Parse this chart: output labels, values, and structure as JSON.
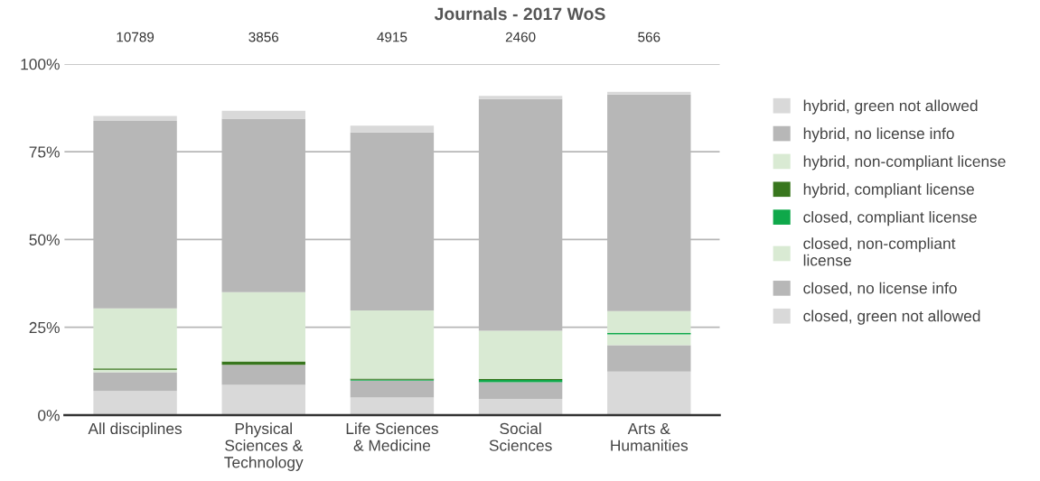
{
  "chart_data": {
    "type": "bar",
    "title": "Journals - 2017 WoS",
    "stacked": true,
    "categories": [
      "All disciplines",
      "Physical\nSciences &\nTechnology",
      "Life Sciences\n& Medicine",
      "Social\nSciences",
      "Arts &\nHumanities"
    ],
    "series": [
      {
        "name": "closed, green not allowed",
        "color": "#d9d9d9",
        "values": [
          6.9,
          8.6,
          5.0,
          4.6,
          12.4
        ]
      },
      {
        "name": "closed, no license info",
        "color": "#b7b7b7",
        "values": [
          5.3,
          5.7,
          4.8,
          4.8,
          7.5
        ]
      },
      {
        "name": "closed, non-compliant\nlicense",
        "color": "#d9ead3",
        "values": [
          0.7,
          null,
          null,
          null,
          3.1
        ]
      },
      {
        "name": "closed, compliant license",
        "color": "#0fa84a",
        "values": [
          0,
          0,
          0.3,
          0.6,
          0.4
        ]
      },
      {
        "name": "hybrid, compliant license",
        "color": "#38761d",
        "values": [
          0.4,
          1.0,
          0.3,
          0.3,
          0
        ]
      },
      {
        "name": "hybrid, non-compliant license",
        "color": "#d9ead3",
        "values": [
          17.1,
          19.7,
          19.4,
          13.7,
          6.2
        ]
      },
      {
        "name": "hybrid, no license info",
        "color": "#b7b7b7",
        "values": [
          53.4,
          49.4,
          50.7,
          66.0,
          61.7
        ]
      },
      {
        "name": "hybrid, green not allowed",
        "color": "#d9d9d9",
        "values": [
          1.4,
          2.3,
          1.9,
          0.9,
          0.8
        ]
      }
    ],
    "ylim": [
      0,
      100
    ],
    "yticks": [
      {
        "value": 0,
        "label": "0%"
      },
      {
        "value": 25,
        "label": "25%"
      },
      {
        "value": 50,
        "label": "50%"
      },
      {
        "value": 75,
        "label": "75%"
      },
      {
        "value": 100,
        "label": "100%"
      }
    ],
    "grid": "y",
    "legend": "right",
    "annotations": [
      "10789",
      "3856",
      "4915",
      "2460",
      "566"
    ]
  }
}
